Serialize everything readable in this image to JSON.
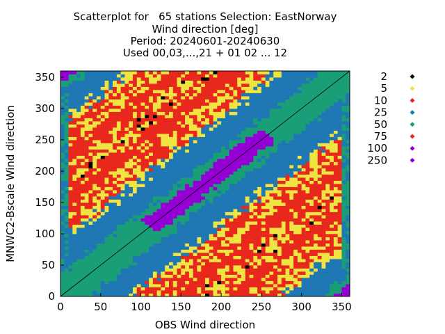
{
  "chart_data": {
    "type": "heatmap",
    "title_lines": [
      "Scatterplot for   65 stations Selection: EastNorway",
      "Wind direction [deg]",
      "Period: 20240601-20240630",
      "Used 00,03,...,21 + 01 02 ... 12"
    ],
    "xlabel": "OBS Wind direction",
    "ylabel": "MNWC2-Bscale Wind direction",
    "xlim": [
      0,
      360
    ],
    "ylim": [
      0,
      360
    ],
    "xticks": [
      0,
      50,
      100,
      150,
      200,
      250,
      300,
      350
    ],
    "yticks": [
      0,
      50,
      100,
      150,
      200,
      250,
      300,
      350
    ],
    "diagonal": "y = x",
    "legend_position": "right",
    "legend": [
      {
        "label": "2",
        "color": "#000000"
      },
      {
        "label": "5",
        "color": "#f0e442"
      },
      {
        "label": "10",
        "color": "#e8281c"
      },
      {
        "label": "25",
        "color": "#1f77b4"
      },
      {
        "label": "50",
        "color": "#1a9e77"
      },
      {
        "label": "75",
        "color": "#e8281c"
      },
      {
        "label": "100",
        "color": "#9400d3"
      },
      {
        "label": "250",
        "color": "#9400d3"
      }
    ]
  }
}
